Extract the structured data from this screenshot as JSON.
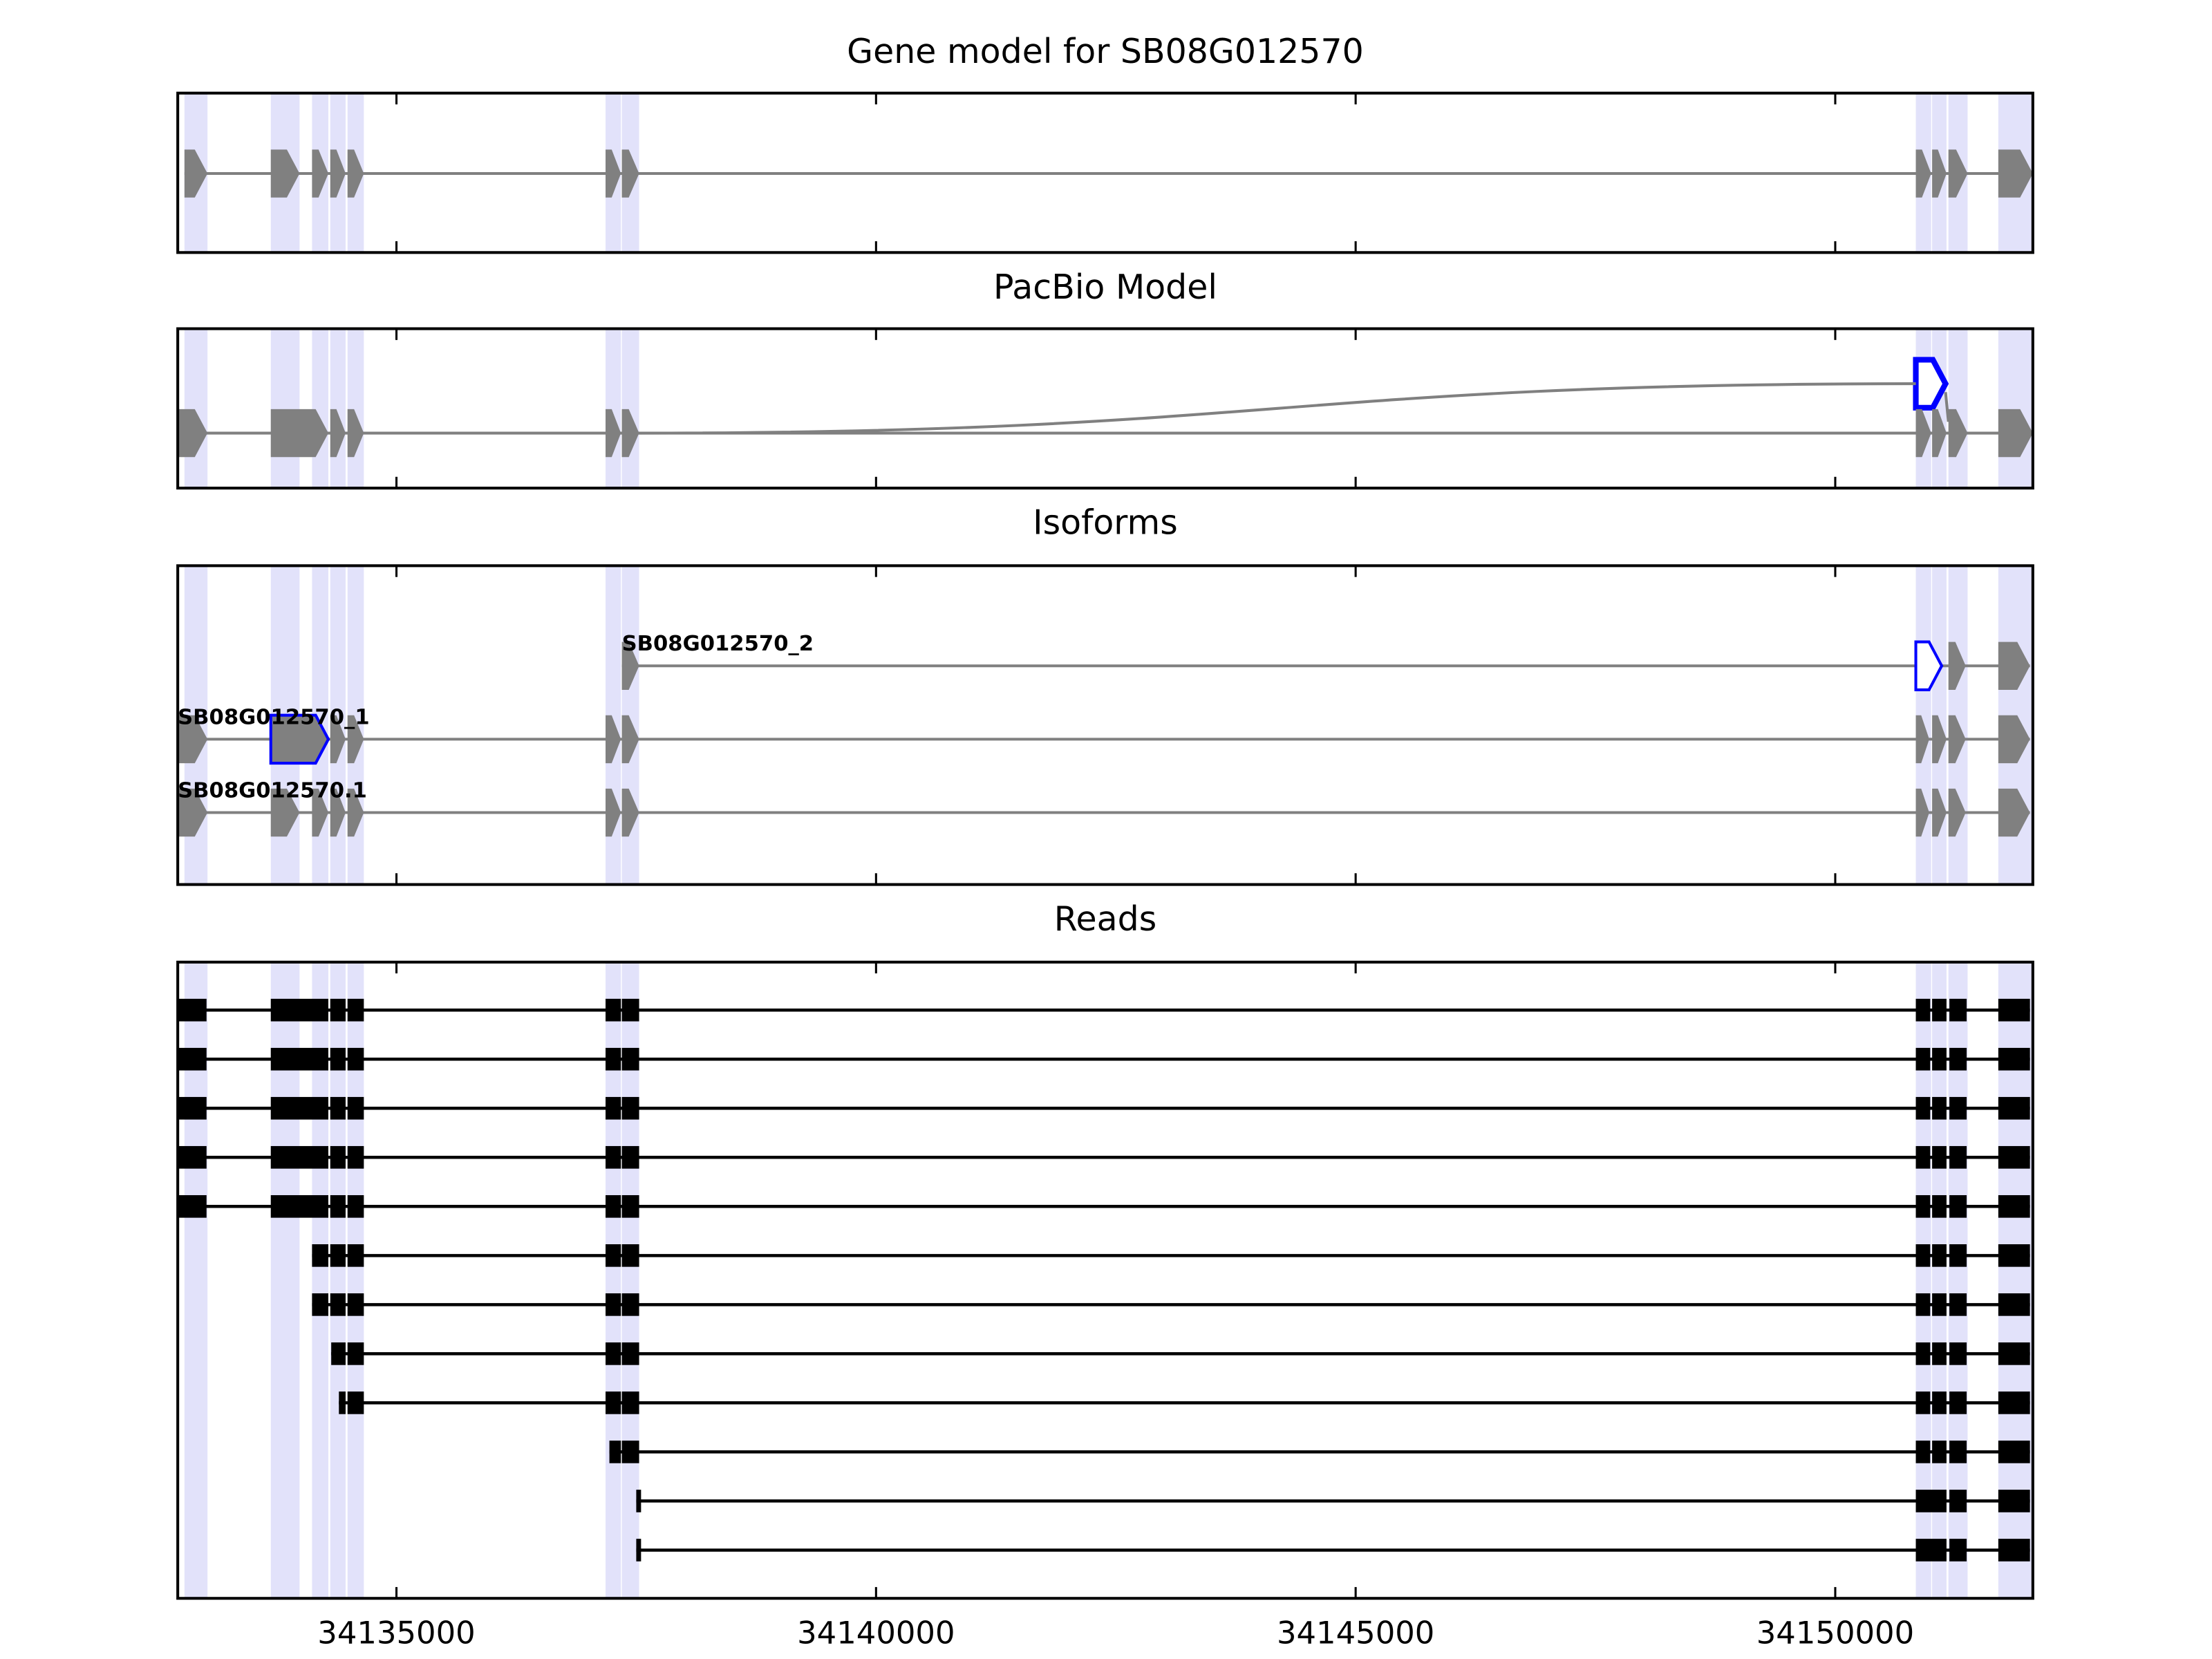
{
  "chart_data": {
    "type": "gene_model",
    "xlim": [
      34132720,
      34152060
    ],
    "xticks": [
      34135000,
      34140000,
      34145000,
      34150000
    ],
    "shade_color": "#e2e2fa",
    "highlight_color": "#0000ff",
    "panels": [
      {
        "title": "Gene model for SB08G012570",
        "style": "model",
        "tracks": [
          {
            "color": "#808080",
            "exons": [
              [
                34132790,
                34133030
              ],
              [
                34133690,
                34133990
              ],
              [
                34134120,
                34134290
              ],
              [
                34134310,
                34134470
              ],
              [
                34134490,
                34134660
              ],
              [
                34137180,
                34137340
              ],
              [
                34137350,
                34137530
              ],
              [
                34150840,
                34151000
              ],
              [
                34151010,
                34151160
              ],
              [
                34151180,
                34151380
              ],
              [
                34151700,
                34152060
              ]
            ]
          }
        ]
      },
      {
        "title": "PacBio Model",
        "style": "model",
        "tracks": [
          {
            "color": "#808080",
            "highlight_exon": 0,
            "exons": [
              [
                34150840,
                34151150
              ]
            ]
          },
          {
            "color": "#808080",
            "exons": [
              [
                34132720,
                34133030
              ],
              [
                34133690,
                34134290
              ],
              [
                34134310,
                34134470
              ],
              [
                34134490,
                34134660
              ],
              [
                34137180,
                34137340
              ],
              [
                34137350,
                34137530
              ],
              [
                34150840,
                34151000
              ],
              [
                34151010,
                34151160
              ],
              [
                34151180,
                34151380
              ],
              [
                34151700,
                34152060
              ]
            ]
          }
        ]
      },
      {
        "title": "Isoforms",
        "style": "model",
        "tracks": [
          {
            "name": "SB08G012570_2",
            "color": "#808080",
            "highlight_exon": 1,
            "exons": [
              [
                34137350,
                34137530
              ],
              [
                34150840,
                34151110
              ],
              [
                34151180,
                34151360
              ],
              [
                34151700,
                34152030
              ]
            ]
          },
          {
            "name": "SB08G012570_1",
            "color": "#808080",
            "highlight_exon": 1,
            "exons": [
              [
                34132720,
                34133030
              ],
              [
                34133690,
                34134290
              ],
              [
                34134310,
                34134470
              ],
              [
                34134490,
                34134660
              ],
              [
                34137180,
                34137340
              ],
              [
                34137350,
                34137530
              ],
              [
                34150840,
                34150980
              ],
              [
                34151010,
                34151160
              ],
              [
                34151180,
                34151360
              ],
              [
                34151700,
                34152030
              ]
            ]
          },
          {
            "name": "SB08G012570.1",
            "color": "#808080",
            "exons": [
              [
                34132720,
                34133030
              ],
              [
                34133690,
                34133990
              ],
              [
                34134120,
                34134290
              ],
              [
                34134310,
                34134470
              ],
              [
                34134490,
                34134660
              ],
              [
                34137180,
                34137340
              ],
              [
                34137350,
                34137530
              ],
              [
                34150840,
                34150980
              ],
              [
                34151010,
                34151160
              ],
              [
                34151180,
                34151360
              ],
              [
                34151700,
                34152030
              ]
            ]
          }
        ]
      },
      {
        "title": "Reads",
        "style": "read",
        "tracks": [
          {
            "color": "#000000",
            "exons": [
              [
                34132720,
                34133020
              ],
              [
                34133690,
                34134290
              ],
              [
                34134310,
                34134470
              ],
              [
                34134490,
                34134660
              ],
              [
                34137180,
                34137340
              ],
              [
                34137350,
                34137530
              ],
              [
                34150840,
                34150990
              ],
              [
                34151010,
                34151160
              ],
              [
                34151190,
                34151370
              ],
              [
                34151700,
                34152030
              ]
            ]
          },
          {
            "color": "#000000",
            "exons": [
              [
                34132720,
                34133020
              ],
              [
                34133690,
                34134290
              ],
              [
                34134310,
                34134470
              ],
              [
                34134490,
                34134660
              ],
              [
                34137180,
                34137340
              ],
              [
                34137350,
                34137530
              ],
              [
                34150840,
                34150990
              ],
              [
                34151010,
                34151160
              ],
              [
                34151190,
                34151370
              ],
              [
                34151700,
                34152030
              ]
            ]
          },
          {
            "color": "#000000",
            "exons": [
              [
                34132720,
                34133020
              ],
              [
                34133690,
                34134290
              ],
              [
                34134310,
                34134470
              ],
              [
                34134490,
                34134660
              ],
              [
                34137180,
                34137340
              ],
              [
                34137350,
                34137530
              ],
              [
                34150840,
                34150990
              ],
              [
                34151010,
                34151160
              ],
              [
                34151190,
                34151370
              ],
              [
                34151700,
                34152030
              ]
            ]
          },
          {
            "color": "#000000",
            "exons": [
              [
                34132720,
                34133020
              ],
              [
                34133690,
                34134290
              ],
              [
                34134310,
                34134470
              ],
              [
                34134490,
                34134660
              ],
              [
                34137180,
                34137340
              ],
              [
                34137350,
                34137530
              ],
              [
                34150840,
                34150990
              ],
              [
                34151010,
                34151160
              ],
              [
                34151190,
                34151370
              ],
              [
                34151700,
                34152030
              ]
            ]
          },
          {
            "color": "#000000",
            "exons": [
              [
                34132720,
                34133020
              ],
              [
                34133690,
                34134290
              ],
              [
                34134310,
                34134470
              ],
              [
                34134490,
                34134660
              ],
              [
                34137180,
                34137340
              ],
              [
                34137350,
                34137530
              ],
              [
                34150840,
                34150990
              ],
              [
                34151010,
                34151160
              ],
              [
                34151190,
                34151370
              ],
              [
                34151700,
                34152030
              ]
            ]
          },
          {
            "color": "#000000",
            "exons": [
              [
                34134120,
                34134290
              ],
              [
                34134310,
                34134470
              ],
              [
                34134490,
                34134660
              ],
              [
                34137180,
                34137340
              ],
              [
                34137350,
                34137530
              ],
              [
                34150840,
                34150990
              ],
              [
                34151010,
                34151160
              ],
              [
                34151190,
                34151370
              ],
              [
                34151700,
                34152030
              ]
            ]
          },
          {
            "color": "#000000",
            "exons": [
              [
                34134120,
                34134290
              ],
              [
                34134310,
                34134470
              ],
              [
                34134490,
                34134660
              ],
              [
                34137180,
                34137340
              ],
              [
                34137350,
                34137530
              ],
              [
                34150840,
                34150990
              ],
              [
                34151010,
                34151160
              ],
              [
                34151190,
                34151370
              ],
              [
                34151700,
                34152030
              ]
            ]
          },
          {
            "color": "#000000",
            "exons": [
              [
                34134320,
                34134470
              ],
              [
                34134490,
                34134660
              ],
              [
                34137180,
                34137340
              ],
              [
                34137350,
                34137530
              ],
              [
                34150840,
                34150990
              ],
              [
                34151010,
                34151160
              ],
              [
                34151190,
                34151370
              ],
              [
                34151700,
                34152030
              ]
            ]
          },
          {
            "color": "#000000",
            "exons": [
              [
                34134400,
                34134470
              ],
              [
                34134490,
                34134660
              ],
              [
                34137180,
                34137340
              ],
              [
                34137350,
                34137530
              ],
              [
                34150840,
                34150990
              ],
              [
                34151010,
                34151160
              ],
              [
                34151190,
                34151370
              ],
              [
                34151700,
                34152030
              ]
            ]
          },
          {
            "color": "#000000",
            "exons": [
              [
                34137220,
                34137340
              ],
              [
                34137350,
                34137530
              ],
              [
                34150840,
                34150990
              ],
              [
                34151010,
                34151160
              ],
              [
                34151190,
                34151370
              ],
              [
                34151700,
                34152030
              ]
            ]
          },
          {
            "color": "#000000",
            "exons": [
              [
                34137500,
                34137550
              ],
              [
                34150840,
                34151160
              ],
              [
                34151190,
                34151370
              ],
              [
                34151700,
                34152030
              ]
            ]
          },
          {
            "color": "#000000",
            "exons": [
              [
                34137500,
                34137550
              ],
              [
                34150840,
                34151160
              ],
              [
                34151190,
                34151370
              ],
              [
                34151700,
                34152030
              ]
            ]
          }
        ]
      }
    ]
  }
}
